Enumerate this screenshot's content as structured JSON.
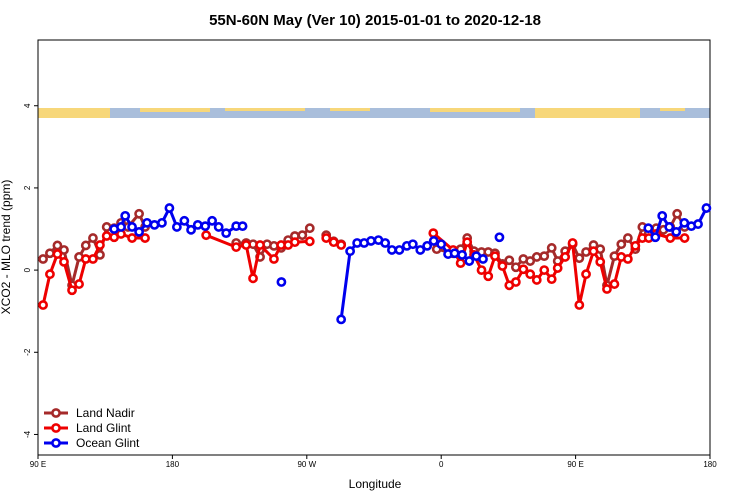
{
  "chart_data": {
    "type": "line",
    "title": "55N-60N May (Ver 10)   2015-01-01 to 2020-12-18",
    "x_label": "Longitude",
    "y_label": "XCO2 - MLO trend (ppm)",
    "xlim": [
      90,
      540
    ],
    "xticks": [
      {
        "value": 90,
        "label": "90 E"
      },
      180,
      {
        "value": 270,
        "label": "90 W"
      },
      {
        "value": 360,
        "label": "0"
      },
      {
        "value": 450,
        "label": "90 E"
      },
      {
        "value": 540,
        "label": "180"
      }
    ],
    "ylim": [
      -4.5,
      5.6
    ],
    "yticks": [
      -4,
      -2,
      0,
      2,
      4
    ],
    "legend": "bottom-left",
    "series": [
      {
        "name": "Land Nadir",
        "color": "#a52a2a",
        "x": [
          93.4,
          98,
          103,
          107.4,
          112.8,
          117.5,
          122,
          126.8,
          131.5,
          136,
          141,
          145.6,
          150.3,
          157.7,
          161.7,
          null,
          222.7,
          229.4,
          234,
          238.7,
          243.4,
          248,
          252.8,
          257.5,
          262,
          267,
          272,
          null,
          283,
          288,
          293,
          null,
          357,
          368,
          373,
          377.4,
          382,
          387,
          391.5,
          396,
          401,
          405.6,
          410,
          415,
          419.6,
          424,
          429,
          434,
          438,
          443,
          448,
          452.5,
          457,
          462,
          466.5,
          471,
          476,
          480.6,
          485,
          490,
          494.7,
          499,
          504,
          508.8,
          513.4,
          518,
          523
        ],
        "values": [
          0.27,
          0.41,
          0.6,
          0.49,
          -0.37,
          0.32,
          0.6,
          0.78,
          0.37,
          1.05,
          1.02,
          1.15,
          1.05,
          1.37,
          1.05,
          null,
          0.66,
          0.66,
          0.63,
          0.32,
          0.63,
          0.59,
          0.54,
          0.73,
          0.83,
          0.85,
          1.02,
          null,
          0.85,
          0.7,
          0.63,
          null,
          0.51,
          0.41,
          0.51,
          0.78,
          0.46,
          0.44,
          0.44,
          0.41,
          0.15,
          0.24,
          0.07,
          0.27,
          0.22,
          0.32,
          0.34,
          0.54,
          0.22,
          0.46,
          0.63,
          0.29,
          0.44,
          0.61,
          0.51,
          -0.37,
          0.34,
          0.63,
          0.78,
          0.51,
          1.05,
          0.9,
          1.02,
          0.98,
          1.05,
          1.37,
          1.05
        ]
      },
      {
        "name": "Land Glint",
        "color": "#ee0000",
        "x": [
          93.4,
          98,
          103,
          107.4,
          112.8,
          117.5,
          122,
          126.8,
          131.5,
          136,
          141,
          145.6,
          153,
          161.7,
          null,
          202.6,
          222.7,
          229.4,
          234,
          238.7,
          248,
          252.8,
          257.5,
          262,
          272,
          null,
          283,
          288,
          293,
          null,
          354.7,
          368,
          373,
          377.4,
          382,
          387,
          391.5,
          396,
          401,
          405.6,
          410,
          415,
          419.6,
          424,
          429,
          434,
          438,
          443,
          448,
          452.5,
          457,
          462,
          466.5,
          471,
          476,
          480.6,
          485,
          490,
          494.7,
          499,
          504,
          513.4,
          523
        ],
        "values": [
          -0.85,
          -0.1,
          0.39,
          0.2,
          -0.49,
          -0.34,
          0.27,
          0.27,
          0.61,
          0.83,
          0.8,
          0.88,
          0.78,
          0.78,
          null,
          0.85,
          0.56,
          0.61,
          -0.2,
          0.61,
          0.27,
          0.61,
          0.61,
          0.68,
          0.7,
          null,
          0.78,
          0.68,
          0.61,
          null,
          0.9,
          0.49,
          0.17,
          0.68,
          0.37,
          0,
          -0.15,
          0.34,
          0.1,
          -0.37,
          -0.29,
          0.02,
          -0.1,
          -0.24,
          0,
          -0.22,
          0.05,
          0.32,
          0.66,
          -0.85,
          -0.1,
          0.46,
          0.2,
          -0.46,
          -0.34,
          0.32,
          0.27,
          0.59,
          0.78,
          0.78,
          0.88,
          0.78,
          0.78
        ]
      },
      {
        "name": "Ocean Glint",
        "color": "#0000ee",
        "x": [
          141,
          145.6,
          148.4,
          153,
          157.7,
          163,
          168,
          173,
          178,
          183,
          188,
          192.5,
          197,
          202,
          206.6,
          211,
          216,
          222.7,
          227,
          null,
          253,
          null,
          293,
          299,
          303.7,
          308.4,
          313,
          318,
          322.5,
          327,
          332,
          337,
          341,
          346,
          350.6,
          355,
          360,
          364.6,
          369,
          374,
          378.8,
          383.5,
          388,
          null,
          399,
          null,
          498.7,
          503.4,
          508,
          512.7,
          517.4,
          522.8,
          527.5,
          532,
          537.6
        ],
        "values": [
          1.0,
          1.05,
          1.32,
          1.05,
          0.93,
          1.15,
          1.1,
          1.15,
          1.51,
          1.05,
          1.2,
          0.98,
          1.1,
          1.07,
          1.2,
          1.05,
          0.9,
          1.07,
          1.07,
          null,
          -0.29,
          null,
          -1.2,
          0.46,
          0.66,
          0.66,
          0.71,
          0.73,
          0.66,
          0.49,
          0.49,
          0.59,
          0.63,
          0.49,
          0.59,
          0.71,
          0.63,
          0.39,
          0.41,
          0.37,
          0.22,
          0.34,
          0.27,
          null,
          0.8,
          null,
          1.02,
          0.8,
          1.32,
          1.05,
          0.93,
          1.15,
          1.07,
          1.12,
          1.51
        ]
      }
    ]
  }
}
